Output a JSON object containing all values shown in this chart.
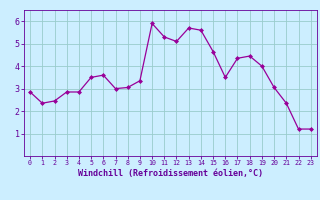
{
  "x": [
    0,
    1,
    2,
    3,
    4,
    5,
    6,
    7,
    8,
    9,
    10,
    11,
    12,
    13,
    14,
    15,
    16,
    17,
    18,
    19,
    20,
    21,
    22,
    23
  ],
  "y": [
    2.85,
    2.35,
    2.45,
    2.85,
    2.85,
    3.5,
    3.6,
    3.0,
    3.05,
    3.35,
    5.9,
    5.3,
    5.1,
    5.7,
    5.6,
    4.65,
    3.5,
    4.35,
    4.45,
    4.0,
    3.05,
    2.35,
    1.2,
    1.2
  ],
  "line_color": "#990099",
  "marker_color": "#990099",
  "bg_color": "#cceeff",
  "grid_color": "#99cccc",
  "xlabel": "Windchill (Refroidissement éolien,°C)",
  "xlabel_color": "#660099",
  "axis_color": "#660099",
  "tick_color": "#660099",
  "ylim": [
    0,
    6.5
  ],
  "xlim": [
    -0.5,
    23.5
  ],
  "yticks": [
    1,
    2,
    3,
    4,
    5,
    6
  ],
  "xticks": [
    0,
    1,
    2,
    3,
    4,
    5,
    6,
    7,
    8,
    9,
    10,
    11,
    12,
    13,
    14,
    15,
    16,
    17,
    18,
    19,
    20,
    21,
    22,
    23
  ],
  "figsize": [
    3.2,
    2.0
  ],
  "dpi": 100
}
